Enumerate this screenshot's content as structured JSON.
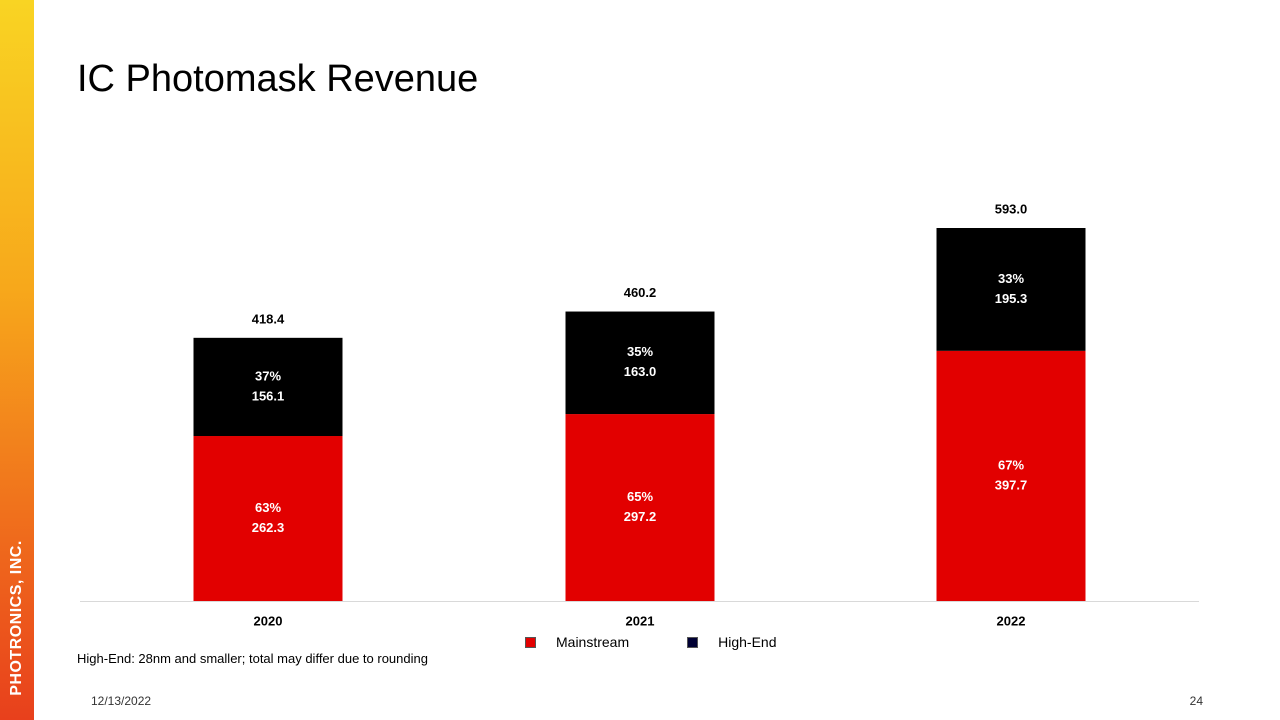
{
  "title": "IC Photomask Revenue",
  "brand": "PHOTRONICS, INC.",
  "footnote": "High-End: 28nm and smaller; total may differ due to rounding",
  "date": "12/13/2022",
  "page_number": "24",
  "colors": {
    "mainstream": "#e20000",
    "high_end": "#000000",
    "legend_high_end": "#000033"
  },
  "legend": {
    "mainstream": "Mainstream",
    "high_end": "High-End"
  },
  "chart_data": {
    "type": "bar",
    "stacked": true,
    "title": "IC Photomask Revenue",
    "categories": [
      "2020",
      "2021",
      "2022"
    ],
    "series": [
      {
        "name": "Mainstream",
        "values": [
          262.3,
          297.2,
          397.7
        ],
        "percent_labels": [
          "63%",
          "65%",
          "67%"
        ],
        "value_labels": [
          "262.3",
          "297.2",
          "397.7"
        ]
      },
      {
        "name": "High-End",
        "values": [
          156.1,
          163.0,
          195.3
        ],
        "percent_labels": [
          "37%",
          "35%",
          "33%"
        ],
        "value_labels": [
          "156.1",
          "163.0",
          "195.3"
        ]
      }
    ],
    "totals": [
      418.4,
      460.2,
      593.0
    ],
    "total_labels": [
      "418.4",
      "460.2",
      "593.0"
    ],
    "ylim": [
      0,
      600
    ],
    "xlabel": "",
    "ylabel": "",
    "grid": false,
    "legend_position": "bottom"
  }
}
